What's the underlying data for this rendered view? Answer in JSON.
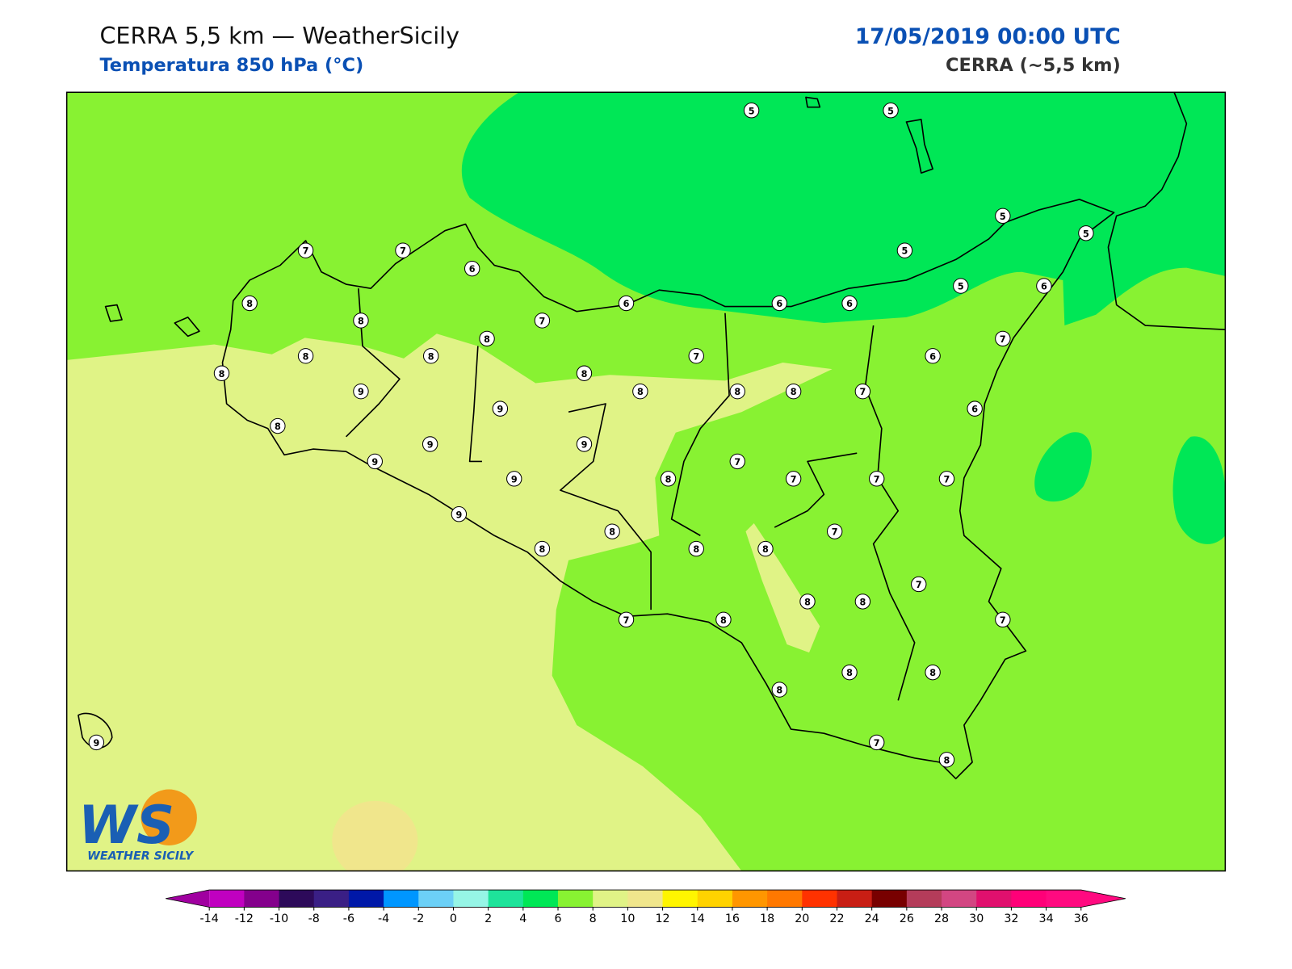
{
  "header": {
    "title": "CERRA 5,5 km — WeatherSicily",
    "subtitle": "Temperatura 850 hPa (°C)",
    "valid_time": "17/05/2019 00:00 UTC",
    "model": "CERRA (~5,5 km)"
  },
  "stations": [
    5,
    5,
    5,
    5,
    5,
    5,
    6,
    7,
    7,
    6,
    8,
    8,
    7,
    6,
    6,
    6,
    7,
    8,
    8,
    8,
    8,
    7,
    6,
    8,
    9,
    8,
    8,
    8,
    7,
    9,
    6,
    8,
    9,
    9,
    9,
    7,
    9,
    8,
    7,
    7,
    7,
    9,
    7,
    8,
    8,
    8,
    8,
    7,
    8,
    8,
    7,
    8,
    7,
    8,
    8,
    8,
    7,
    8,
    9
  ],
  "colorbar": {
    "ticks": [
      -14,
      -12,
      -10,
      -8,
      -6,
      -4,
      -2,
      0,
      2,
      4,
      6,
      8,
      10,
      12,
      14,
      16,
      18,
      20,
      22,
      24,
      26,
      28,
      30,
      32,
      34,
      36
    ],
    "colors": [
      "#c000c0",
      "#84008c",
      "#2d0a5a",
      "#3a1f85",
      "#0018a8",
      "#0096ff",
      "#6cd0f7",
      "#96f5e6",
      "#1ee39a",
      "#00e756",
      "#88f232",
      "#e0f386",
      "#f0e68c",
      "#fff500",
      "#ffd200",
      "#ff9600",
      "#ff7800",
      "#ff3200",
      "#c81e14",
      "#780000",
      "#b43c5a",
      "#d24682",
      "#e0106e",
      "#ff0078",
      "#ff0a80"
    ],
    "under_color": "#a000a0",
    "over_color": "#ff0a80"
  },
  "logo": {
    "mark": "WS",
    "name": "WEATHER SICILY"
  }
}
